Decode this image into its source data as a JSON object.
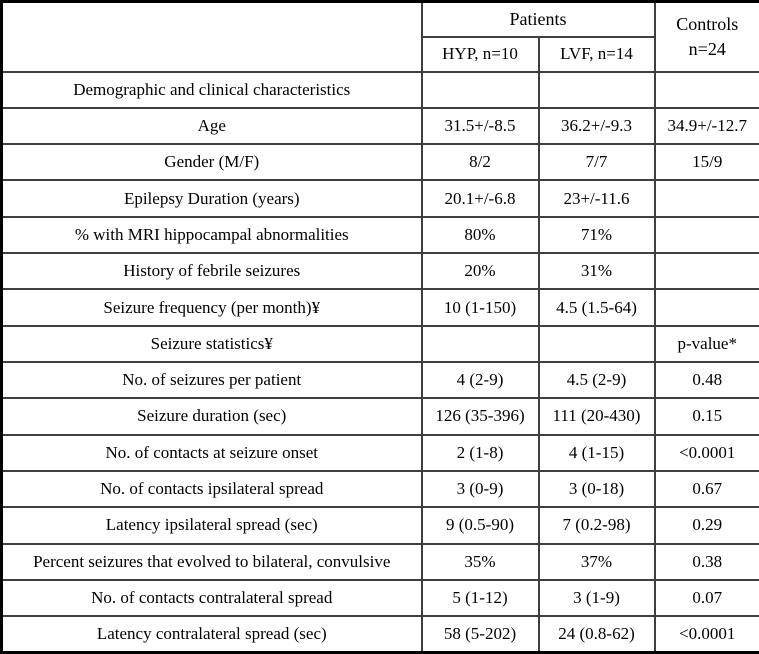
{
  "table": {
    "header": {
      "patients_label": "Patients",
      "col_hyp": "HYP, n=10",
      "col_lvf": "LVF, n=14",
      "controls_line1": "Controls",
      "controls_line2": "n=24"
    },
    "rows": [
      {
        "label": "Demographic and clinical characteristics",
        "hyp": "",
        "lvf": "",
        "ctrl": ""
      },
      {
        "label": "Age",
        "hyp": "31.5+/-8.5",
        "lvf": "36.2+/-9.3",
        "ctrl": "34.9+/-12.7"
      },
      {
        "label": "Gender (M/F)",
        "hyp": "8/2",
        "lvf": "7/7",
        "ctrl": "15/9"
      },
      {
        "label": "Epilepsy Duration (years)",
        "hyp": "20.1+/-6.8",
        "lvf": "23+/-11.6",
        "ctrl": ""
      },
      {
        "label": "% with MRI hippocampal abnormalities",
        "hyp": "80%",
        "lvf": "71%",
        "ctrl": ""
      },
      {
        "label": "History of febrile seizures",
        "hyp": "20%",
        "lvf": "31%",
        "ctrl": ""
      },
      {
        "label": "Seizure frequency (per month)¥",
        "hyp": "10 (1-150)",
        "lvf": "4.5 (1.5-64)",
        "ctrl": ""
      },
      {
        "label": "Seizure statistics¥",
        "hyp": "",
        "lvf": "",
        "ctrl": "p-value*"
      },
      {
        "label": "No. of seizures per patient",
        "hyp": "4 (2-9)",
        "lvf": "4.5 (2-9)",
        "ctrl": "0.48"
      },
      {
        "label": "Seizure duration (sec)",
        "hyp": "126 (35-396)",
        "lvf": "111 (20-430)",
        "ctrl": "0.15"
      },
      {
        "label": "No. of contacts at seizure onset",
        "hyp": "2 (1-8)",
        "lvf": "4 (1-15)",
        "ctrl": "<0.0001"
      },
      {
        "label": "No. of contacts ipsilateral spread",
        "hyp": "3 (0-9)",
        "lvf": "3 (0-18)",
        "ctrl": "0.67"
      },
      {
        "label": "Latency ipsilateral spread (sec)",
        "hyp": "9 (0.5-90)",
        "lvf": "7 (0.2-98)",
        "ctrl": "0.29"
      },
      {
        "label": "Percent seizures that evolved to bilateral, convulsive",
        "hyp": "35%",
        "lvf": "37%",
        "ctrl": "0.38"
      },
      {
        "label": "No. of contacts contralateral spread",
        "hyp": "5 (1-12)",
        "lvf": "3 (1-9)",
        "ctrl": "0.07"
      },
      {
        "label": "Latency contralateral spread (sec)",
        "hyp": "58 (5-202)",
        "lvf": "24 (0.8-62)",
        "ctrl": "<0.0001"
      }
    ]
  }
}
